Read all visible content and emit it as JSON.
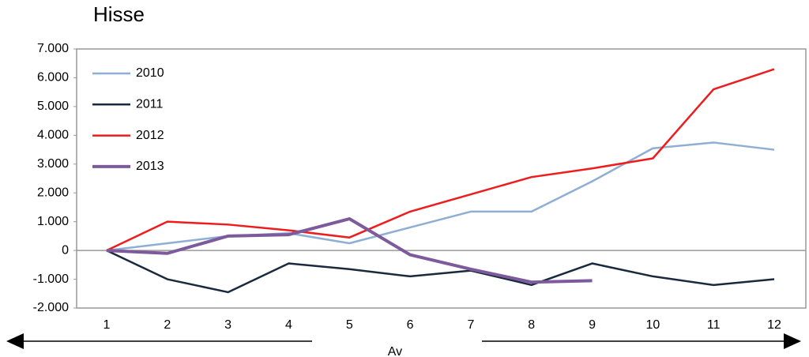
{
  "chart_data": {
    "type": "line",
    "title": "Hisse",
    "x_label": "Av",
    "categories": [
      "1",
      "2",
      "3",
      "4",
      "5",
      "6",
      "7",
      "8",
      "9",
      "10",
      "11",
      "12"
    ],
    "series": [
      {
        "name": "2010",
        "color": "#8eaed4",
        "values": [
          0,
          250,
          500,
          600,
          250,
          800,
          1350,
          1350,
          2400,
          3550,
          3750,
          3500
        ]
      },
      {
        "name": "2011",
        "color": "#1a2a3e",
        "values": [
          0,
          -1000,
          -1450,
          -450,
          -650,
          -900,
          -700,
          -1200,
          -450,
          -900,
          -1200,
          -1000
        ]
      },
      {
        "name": "2012",
        "color": "#ee1c1c",
        "values": [
          0,
          1000,
          900,
          700,
          450,
          1350,
          1950,
          2550,
          2850,
          3200,
          5600,
          6300
        ]
      },
      {
        "name": "2013",
        "color": "#7c5a9c",
        "values": [
          0,
          -100,
          500,
          550,
          1100,
          -150,
          -650,
          -1100,
          -1050,
          null,
          null,
          null
        ]
      }
    ],
    "ylim": [
      -2000,
      7000
    ],
    "yticks": [
      {
        "value": -2000,
        "label": "-2.000"
      },
      {
        "value": -1000,
        "label": "-1.000"
      },
      0,
      {
        "value": 1000,
        "label": "1.000"
      },
      {
        "value": 2000,
        "label": "2.000"
      },
      {
        "value": 3000,
        "label": "3.000"
      },
      {
        "value": 4000,
        "label": "4.000"
      },
      {
        "value": 5000,
        "label": "5.000"
      },
      {
        "value": 6000,
        "label": "6.000"
      },
      {
        "value": 7000,
        "label": "7.000"
      }
    ],
    "legend": "upper left",
    "grid": false
  }
}
